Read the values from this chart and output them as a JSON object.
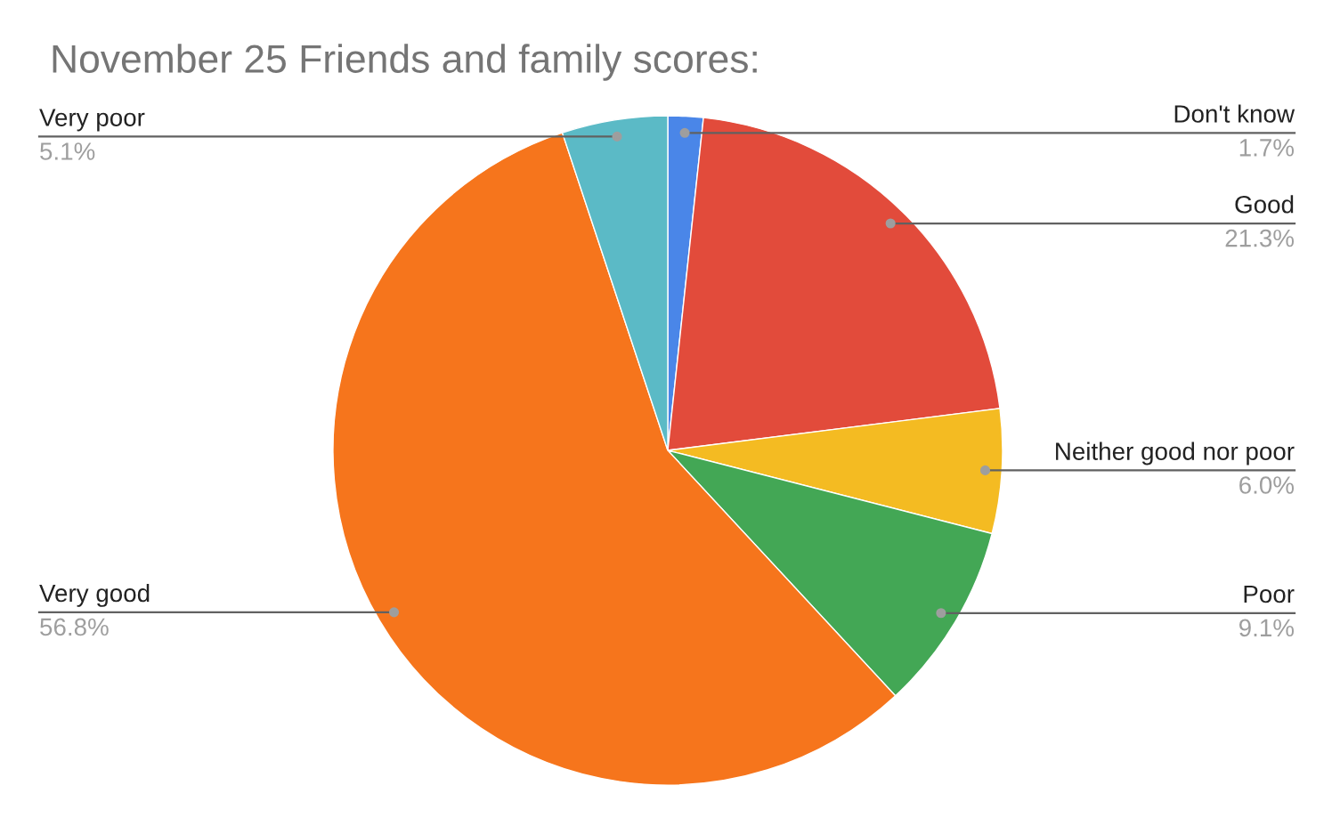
{
  "chart_data": {
    "type": "pie",
    "title": "November 25 Friends and family scores:",
    "categories": [
      "Don't know",
      "Good",
      "Neither good nor poor",
      "Poor",
      "Very good",
      "Very poor"
    ],
    "values": [
      1.7,
      21.3,
      6.0,
      9.1,
      56.8,
      5.1
    ],
    "colors": [
      "#4a86e8",
      "#e24b3b",
      "#f4bb22",
      "#43a755",
      "#f6751c",
      "#5bbac6"
    ],
    "value_labels": [
      "1.7%",
      "21.3%",
      "6.0%",
      "9.1%",
      "56.8%",
      "5.1%"
    ],
    "legend": false
  }
}
